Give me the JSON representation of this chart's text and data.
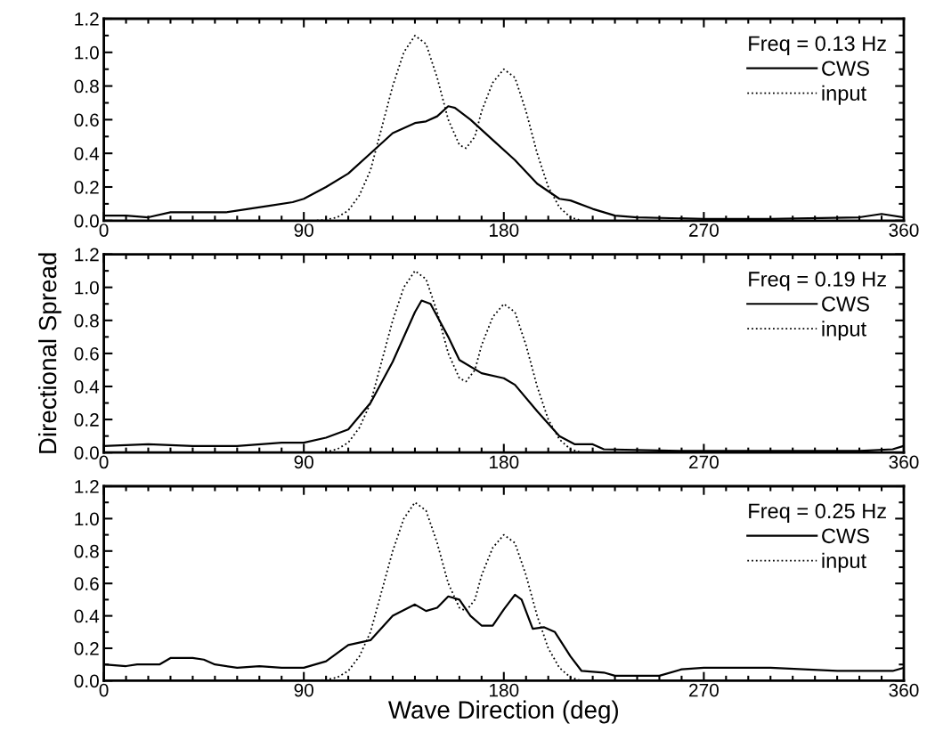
{
  "chart_data": [
    {
      "type": "line",
      "legend_title": "Freq = 0.13 Hz",
      "legend": "top right",
      "xlim": [
        0,
        360
      ],
      "xticks": [
        0,
        90,
        180,
        270,
        360
      ],
      "ylim": [
        0,
        1.2
      ],
      "yticks": [
        {
          "value": 0,
          "label": "0.0"
        },
        {
          "value": 0.2,
          "label": "0.2"
        },
        {
          "value": 0.4,
          "label": "0.4"
        },
        {
          "value": 0.6,
          "label": "0.6"
        },
        {
          "value": 0.8,
          "label": "0.8"
        },
        {
          "value": 1.0,
          "label": "1.0"
        },
        {
          "value": 1.2,
          "label": "1.2"
        }
      ],
      "grid": false,
      "series": [
        {
          "name": "CWS",
          "color": "#000000",
          "line_style": "solid",
          "x": [
            0,
            10,
            20,
            30,
            40,
            55,
            65,
            75,
            85,
            90,
            100,
            110,
            120,
            130,
            140,
            145,
            150,
            155,
            158,
            165,
            175,
            185,
            195,
            205,
            210,
            220,
            230,
            240,
            270,
            300,
            340,
            350,
            360
          ],
          "values": [
            0.03,
            0.03,
            0.02,
            0.05,
            0.05,
            0.05,
            0.07,
            0.09,
            0.11,
            0.13,
            0.2,
            0.28,
            0.4,
            0.52,
            0.58,
            0.59,
            0.62,
            0.68,
            0.67,
            0.6,
            0.48,
            0.36,
            0.22,
            0.13,
            0.12,
            0.07,
            0.03,
            0.02,
            0.01,
            0.01,
            0.02,
            0.04,
            0.02
          ]
        },
        {
          "name": "input",
          "color": "#000000",
          "line_style": "dotted",
          "x": [
            0,
            95,
            100,
            105,
            110,
            115,
            120,
            125,
            130,
            135,
            140,
            145,
            150,
            155,
            160,
            163,
            167,
            170,
            175,
            180,
            185,
            190,
            195,
            200,
            205,
            210,
            215,
            220,
            360
          ],
          "values": [
            0,
            0,
            0.005,
            0.02,
            0.06,
            0.15,
            0.3,
            0.55,
            0.8,
            1.0,
            1.1,
            1.05,
            0.85,
            0.6,
            0.45,
            0.43,
            0.5,
            0.65,
            0.82,
            0.9,
            0.85,
            0.65,
            0.4,
            0.2,
            0.08,
            0.02,
            0,
            0,
            0
          ]
        }
      ]
    },
    {
      "type": "line",
      "legend_title": "Freq = 0.19 Hz",
      "legend": "top right",
      "ylabel": "Directional Spread",
      "xlim": [
        0,
        360
      ],
      "xticks": [
        0,
        90,
        180,
        270,
        360
      ],
      "ylim": [
        0,
        1.2
      ],
      "yticks": [
        {
          "value": 0,
          "label": "0.0"
        },
        {
          "value": 0.2,
          "label": "0.2"
        },
        {
          "value": 0.4,
          "label": "0.4"
        },
        {
          "value": 0.6,
          "label": "0.6"
        },
        {
          "value": 0.8,
          "label": "0.8"
        },
        {
          "value": 1.0,
          "label": "1.0"
        },
        {
          "value": 1.2,
          "label": "1.2"
        }
      ],
      "grid": false,
      "series": [
        {
          "name": "CWS",
          "color": "#000000",
          "line_style": "solid",
          "x": [
            0,
            20,
            40,
            60,
            80,
            90,
            100,
            110,
            120,
            130,
            140,
            143,
            147,
            155,
            160,
            170,
            180,
            185,
            195,
            205,
            212,
            220,
            225,
            260,
            300,
            340,
            355,
            360
          ],
          "values": [
            0.04,
            0.05,
            0.04,
            0.04,
            0.06,
            0.06,
            0.09,
            0.14,
            0.3,
            0.55,
            0.85,
            0.92,
            0.9,
            0.7,
            0.56,
            0.48,
            0.45,
            0.41,
            0.25,
            0.1,
            0.05,
            0.05,
            0.02,
            0.01,
            0.01,
            0.01,
            0.02,
            0.04
          ]
        },
        {
          "name": "input",
          "color": "#000000",
          "line_style": "dotted",
          "x": [
            0,
            95,
            100,
            105,
            110,
            115,
            120,
            125,
            130,
            135,
            140,
            145,
            150,
            155,
            160,
            163,
            167,
            170,
            175,
            180,
            185,
            190,
            195,
            200,
            205,
            210,
            215,
            220,
            360
          ],
          "values": [
            0,
            0,
            0.005,
            0.02,
            0.06,
            0.15,
            0.3,
            0.55,
            0.8,
            1.0,
            1.1,
            1.05,
            0.85,
            0.6,
            0.45,
            0.43,
            0.5,
            0.65,
            0.82,
            0.9,
            0.85,
            0.65,
            0.4,
            0.2,
            0.08,
            0.02,
            0,
            0,
            0
          ]
        }
      ]
    },
    {
      "type": "line",
      "legend_title": "Freq = 0.25 Hz",
      "legend": "top right",
      "xlabel": "Wave Direction (deg)",
      "xlim": [
        0,
        360
      ],
      "xticks": [
        0,
        90,
        180,
        270,
        360
      ],
      "ylim": [
        0,
        1.2
      ],
      "yticks": [
        {
          "value": 0,
          "label": "0.0"
        },
        {
          "value": 0.2,
          "label": "0.2"
        },
        {
          "value": 0.4,
          "label": "0.4"
        },
        {
          "value": 0.6,
          "label": "0.6"
        },
        {
          "value": 0.8,
          "label": "0.8"
        },
        {
          "value": 1.0,
          "label": "1.0"
        },
        {
          "value": 1.2,
          "label": "1.2"
        }
      ],
      "grid": false,
      "series": [
        {
          "name": "CWS",
          "color": "#000000",
          "line_style": "solid",
          "x": [
            0,
            10,
            15,
            20,
            25,
            30,
            40,
            45,
            50,
            60,
            70,
            80,
            90,
            100,
            110,
            120,
            130,
            140,
            145,
            150,
            155,
            160,
            165,
            170,
            175,
            180,
            185,
            188,
            193,
            198,
            203,
            210,
            215,
            225,
            230,
            250,
            260,
            270,
            300,
            330,
            355,
            360
          ],
          "values": [
            0.1,
            0.09,
            0.1,
            0.1,
            0.1,
            0.14,
            0.14,
            0.13,
            0.1,
            0.08,
            0.09,
            0.08,
            0.08,
            0.12,
            0.22,
            0.25,
            0.4,
            0.47,
            0.43,
            0.45,
            0.52,
            0.5,
            0.4,
            0.34,
            0.34,
            0.44,
            0.53,
            0.5,
            0.32,
            0.33,
            0.3,
            0.15,
            0.06,
            0.05,
            0.03,
            0.03,
            0.07,
            0.08,
            0.08,
            0.06,
            0.06,
            0.08
          ]
        },
        {
          "name": "input",
          "color": "#000000",
          "line_style": "dotted",
          "x": [
            0,
            95,
            100,
            105,
            110,
            115,
            120,
            125,
            130,
            135,
            140,
            145,
            150,
            155,
            160,
            163,
            167,
            170,
            175,
            180,
            185,
            190,
            195,
            200,
            205,
            210,
            215,
            220,
            360
          ],
          "values": [
            0,
            0,
            0.005,
            0.02,
            0.06,
            0.15,
            0.3,
            0.55,
            0.8,
            1.0,
            1.1,
            1.05,
            0.85,
            0.6,
            0.45,
            0.43,
            0.5,
            0.65,
            0.82,
            0.9,
            0.85,
            0.65,
            0.4,
            0.2,
            0.08,
            0.02,
            0,
            0,
            0
          ]
        }
      ]
    }
  ]
}
